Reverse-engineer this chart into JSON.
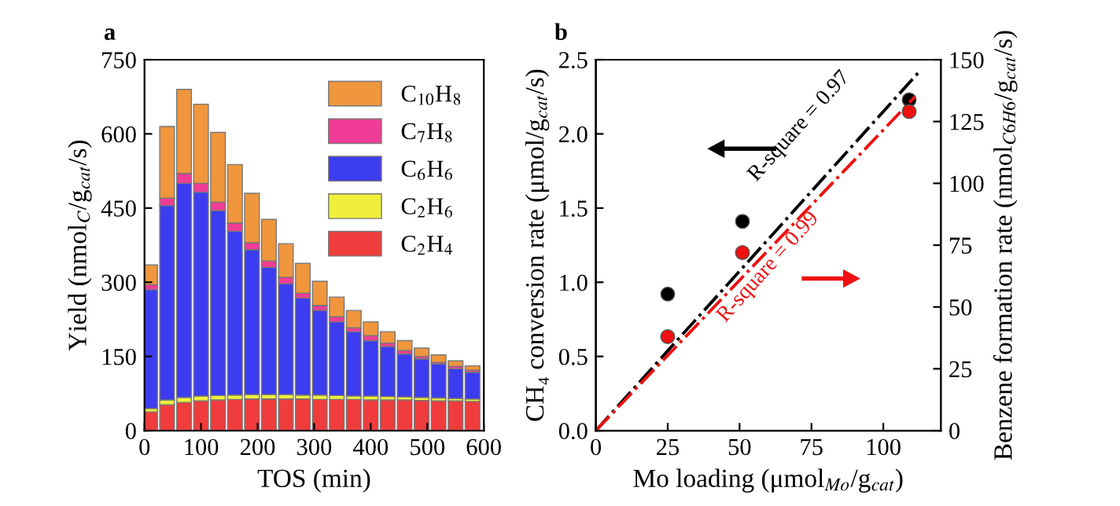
{
  "chart_data": [
    {
      "type": "bar",
      "title": "a",
      "stacked": true,
      "xlabel": "TOS (min)",
      "ylabel": "Yield (nmol$_{C}$/g$_{cat}$/s)",
      "x": [
        10,
        40,
        70,
        100,
        130,
        160,
        190,
        220,
        250,
        280,
        310,
        340,
        370,
        400,
        430,
        460,
        490,
        520,
        550,
        580
      ],
      "xlim": [
        0,
        600
      ],
      "xticks": [
        0,
        100,
        200,
        300,
        400,
        500,
        600
      ],
      "ylim": [
        0,
        750
      ],
      "yticks": [
        0,
        150,
        300,
        450,
        600,
        750
      ],
      "grid": false,
      "legend": "top right",
      "series": [
        {
          "name": "C$_{2}$H$_{4}$",
          "color": "#f03c3c",
          "values": [
            38,
            52,
            57,
            60,
            62,
            63,
            64,
            64,
            64,
            64,
            63,
            63,
            63,
            62,
            62,
            62,
            61,
            60,
            60,
            59
          ]
        },
        {
          "name": "C$_{2}$H$_{6}$",
          "color": "#f0f03c",
          "values": [
            7,
            10,
            10,
            10,
            9,
            9,
            9,
            9,
            9,
            8,
            9,
            8,
            7,
            8,
            7,
            6,
            6,
            6,
            5,
            5
          ]
        },
        {
          "name": "C$_{6}$H$_{6}$",
          "color": "#3c3cf0",
          "values": [
            240,
            393,
            433,
            412,
            374,
            331,
            293,
            257,
            224,
            196,
            171,
            149,
            130,
            112,
            101,
            87,
            78,
            69,
            60,
            54
          ]
        },
        {
          "name": "C$_{7}$H$_{8}$",
          "color": "#f03c96",
          "values": [
            10,
            15,
            20,
            18,
            17,
            17,
            14,
            13,
            13,
            10,
            10,
            10,
            8,
            10,
            7,
            7,
            5,
            3,
            5,
            4
          ]
        },
        {
          "name": "C$_{10}$H$_{8}$",
          "color": "#f0963c",
          "values": [
            40,
            145,
            170,
            160,
            141,
            118,
            100,
            84,
            68,
            60,
            49,
            40,
            35,
            28,
            23,
            20,
            17,
            15,
            11,
            9
          ]
        }
      ]
    },
    {
      "type": "scatter",
      "title": "b",
      "xlabel": "Mo loading (μmol$_{Mo}$/g$_{cat}$)",
      "ylabel": "CH₄ conversion rate (μmol/g$_{cat}$/s)",
      "y2label": "Benzene formation rate (nmol$_{C6H6}$/g$_{cat}$/s)",
      "xlim": [
        0,
        120
      ],
      "xticks": [
        0,
        25,
        50,
        75,
        100
      ],
      "ylim": [
        0,
        2.5
      ],
      "yticks": [
        {
          "value": 0,
          "label": "0.0"
        },
        0.5,
        {
          "value": 1,
          "label": "1.0"
        },
        1.5,
        {
          "value": 2,
          "label": "2.0"
        },
        2.5
      ],
      "y2lim": [
        0,
        150
      ],
      "y2ticks": [
        0,
        25,
        50,
        75,
        100,
        125,
        150
      ],
      "grid": false,
      "series": [
        {
          "color": "#000000",
          "x": [
            25,
            51,
            109
          ],
          "values": [
            0.92,
            1.41,
            2.23
          ],
          "marker": "circle"
        },
        {
          "color": "#ee1111",
          "x": [
            25,
            51,
            109
          ],
          "values": [
            38,
            72,
            129
          ],
          "axis": "y2",
          "marker": "circle"
        },
        {
          "type": "line",
          "color": "#000000",
          "x": [
            0,
            113
          ],
          "values": [
            0,
            2.43
          ],
          "line_style": "dashdot"
        },
        {
          "type": "line",
          "color": "#ee1111",
          "x": [
            0,
            111
          ],
          "values": [
            0,
            135
          ],
          "axis": "y2",
          "line_style": "dashdot"
        }
      ],
      "annotations": [
        "R-square = 0.97",
        "R-square = 0.99"
      ]
    }
  ]
}
